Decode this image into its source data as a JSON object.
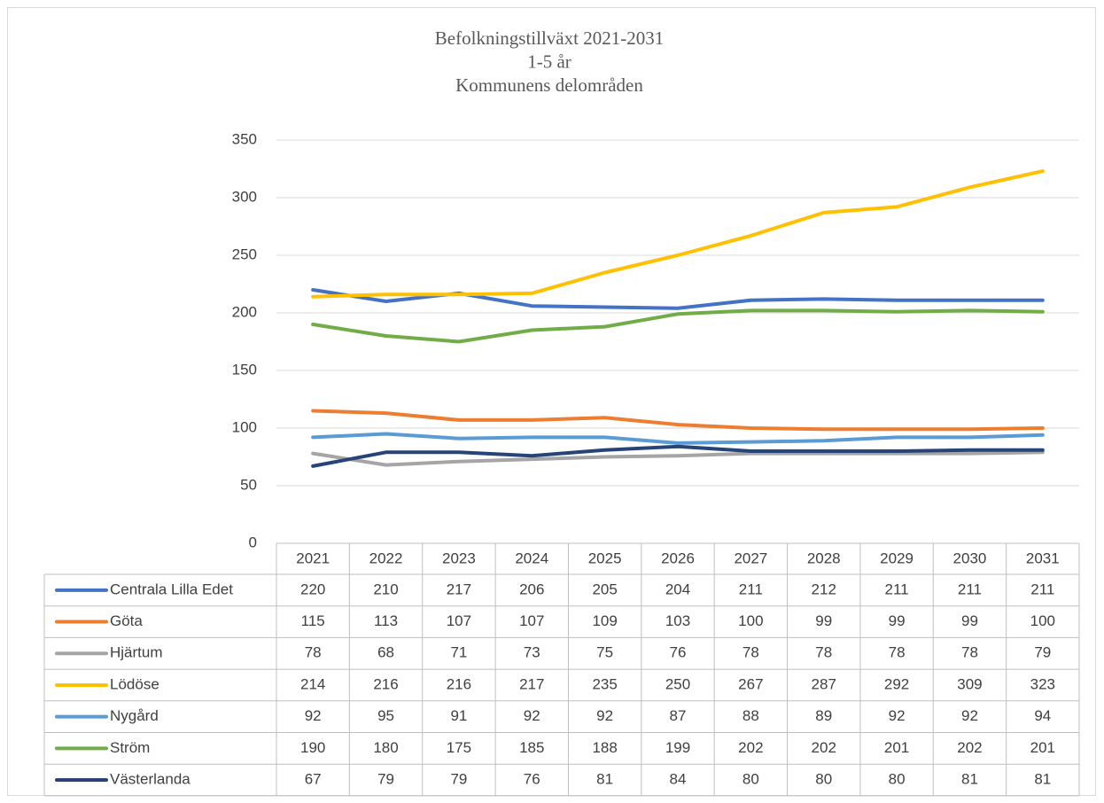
{
  "chart_data": {
    "type": "line",
    "title_lines": [
      "Befolkningstillväxt 2021-2031",
      "1-5 år",
      "Kommunens delområden"
    ],
    "categories": [
      "2021",
      "2022",
      "2023",
      "2024",
      "2025",
      "2026",
      "2027",
      "2028",
      "2029",
      "2030",
      "2031"
    ],
    "series": [
      {
        "name": "Centrala Lilla Edet",
        "color": "#4472c4",
        "values": [
          220,
          210,
          217,
          206,
          205,
          204,
          211,
          212,
          211,
          211,
          211
        ]
      },
      {
        "name": "Göta",
        "color": "#ed7d31",
        "values": [
          115,
          113,
          107,
          107,
          109,
          103,
          100,
          99,
          99,
          99,
          100
        ]
      },
      {
        "name": "Hjärtum",
        "color": "#a5a5a5",
        "values": [
          78,
          68,
          71,
          73,
          75,
          76,
          78,
          78,
          78,
          78,
          79
        ]
      },
      {
        "name": "Lödöse",
        "color": "#ffc000",
        "values": [
          214,
          216,
          216,
          217,
          235,
          250,
          267,
          287,
          292,
          309,
          323
        ]
      },
      {
        "name": "Nygård",
        "color": "#5b9bd5",
        "values": [
          92,
          95,
          91,
          92,
          92,
          87,
          88,
          89,
          92,
          92,
          94
        ]
      },
      {
        "name": "Ström",
        "color": "#70ad47",
        "values": [
          190,
          180,
          175,
          185,
          188,
          199,
          202,
          202,
          201,
          202,
          201
        ]
      },
      {
        "name": "Västerlanda",
        "color": "#264478",
        "values": [
          67,
          79,
          79,
          76,
          81,
          84,
          80,
          80,
          80,
          81,
          81
        ]
      }
    ],
    "ylim": [
      0,
      350
    ],
    "yticks": [
      0,
      50,
      100,
      150,
      200,
      250,
      300,
      350
    ],
    "grid": true,
    "legend": "table"
  }
}
